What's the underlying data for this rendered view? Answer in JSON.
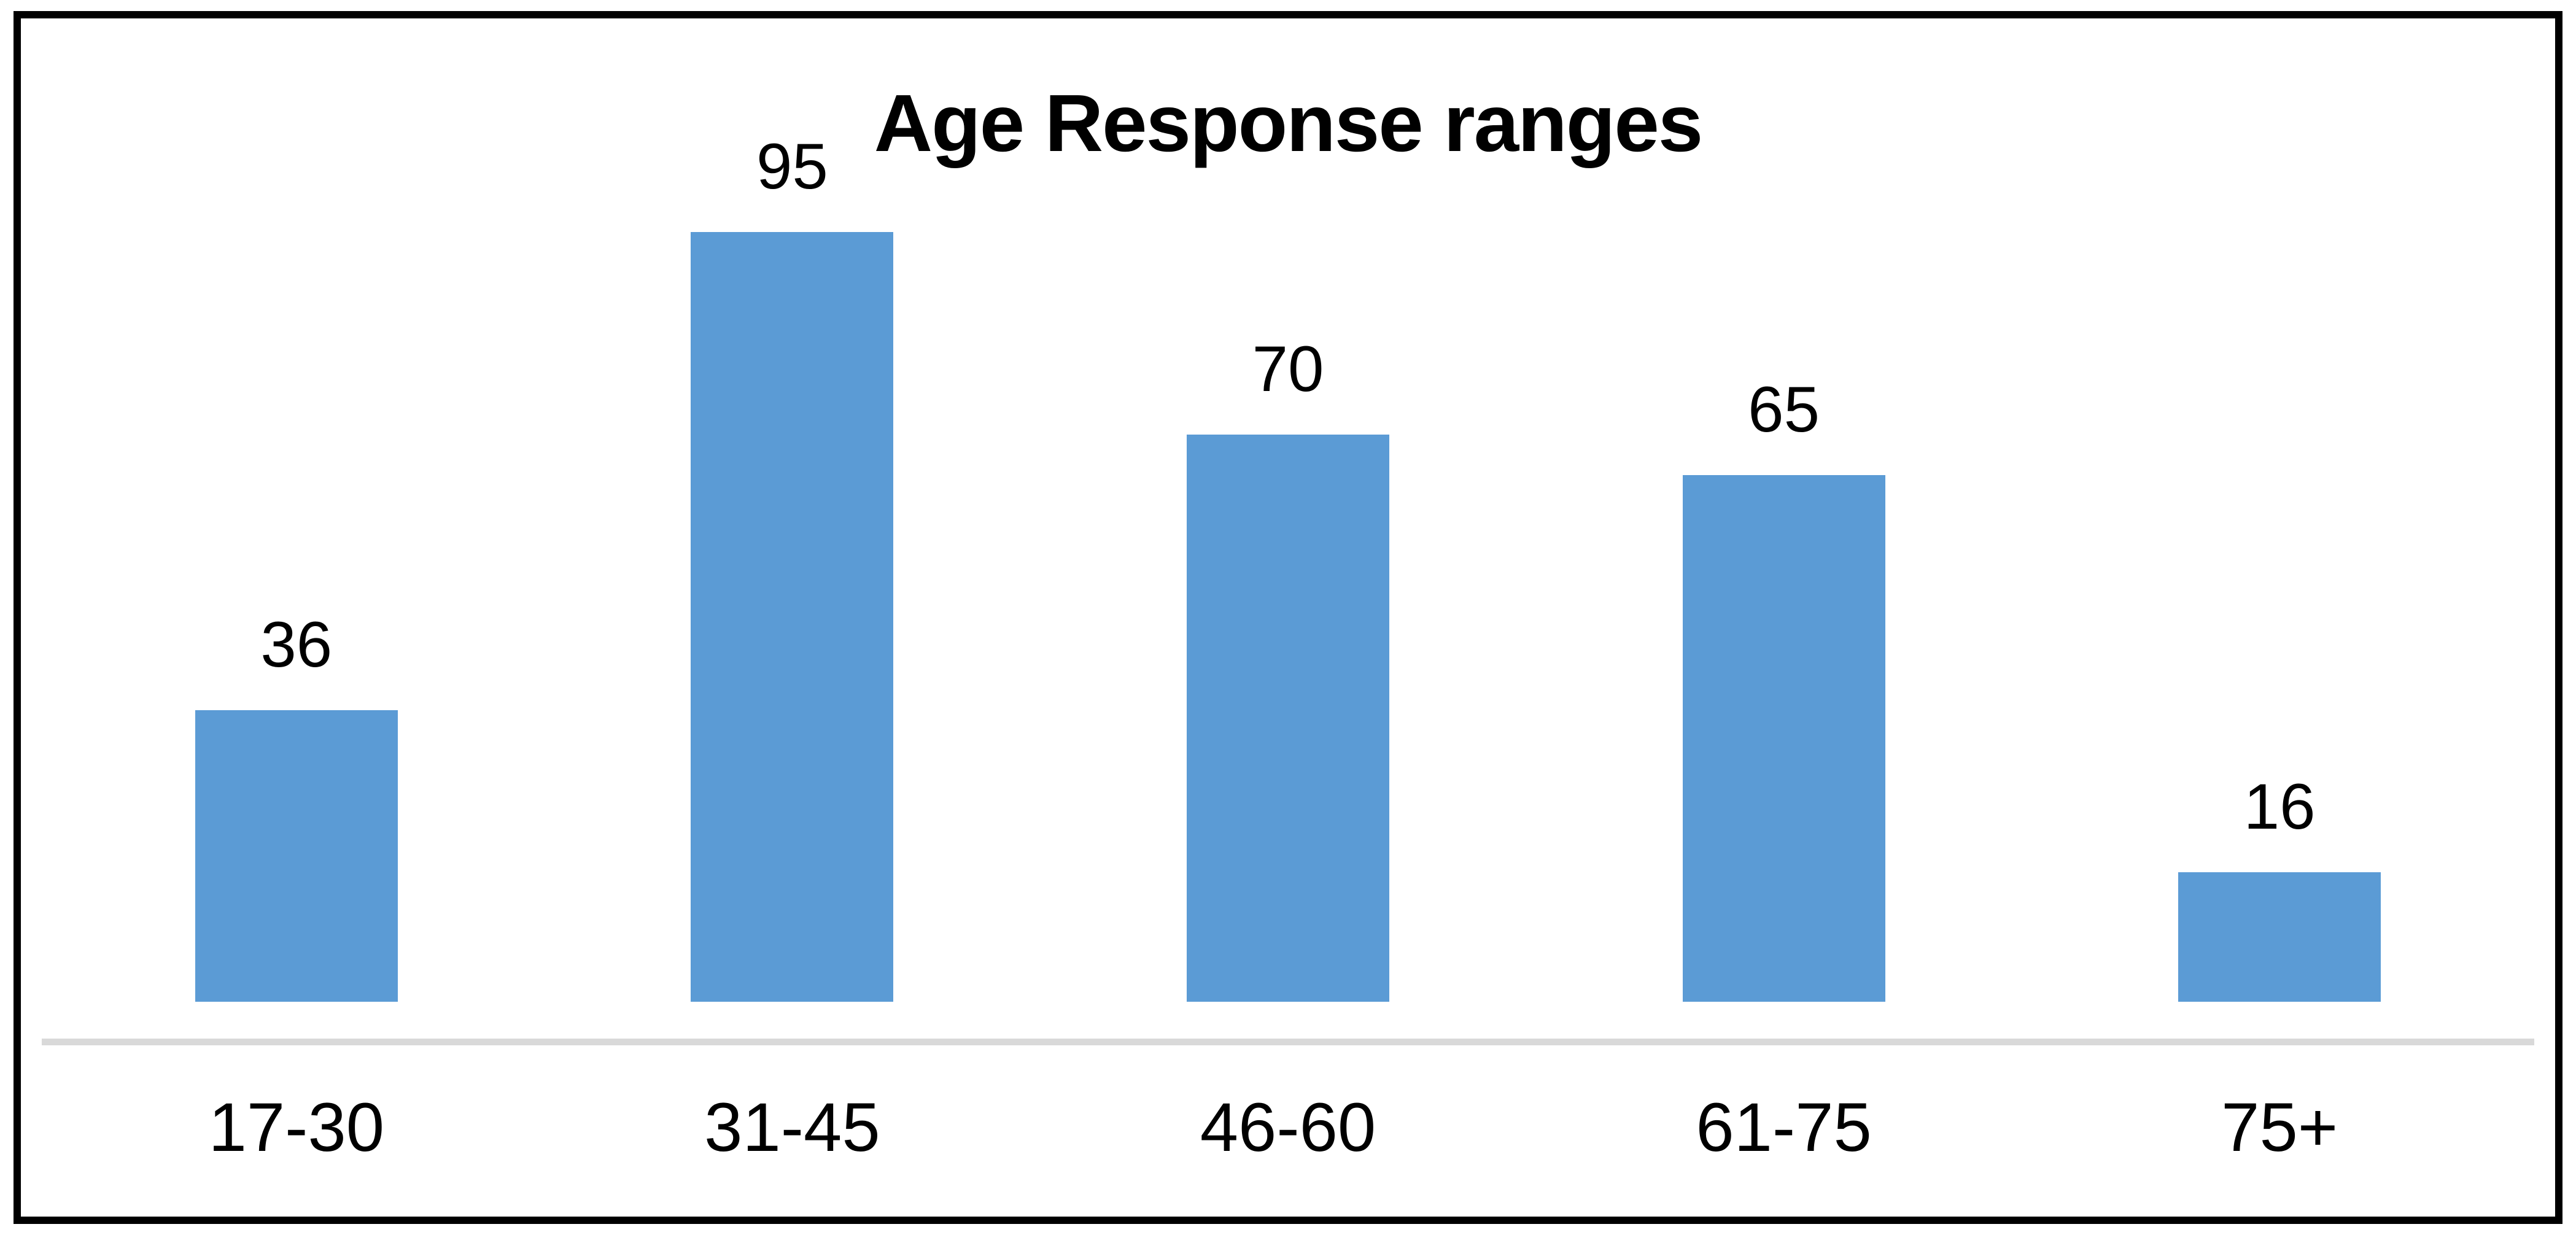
{
  "chart_data": {
    "type": "bar",
    "title": "Age Response ranges",
    "categories": [
      "17-30",
      "31-45",
      "46-60",
      "61-75",
      "75+"
    ],
    "values": [
      36,
      95,
      70,
      65,
      16
    ],
    "xlabel": "",
    "ylabel": "",
    "ylim": [
      0,
      100
    ],
    "grid": false,
    "legend_position": "none",
    "data_labels_shown": true,
    "bar_color": "#5B9BD5",
    "axis_line_color": "#D9D9D9",
    "title_color": "#000000",
    "label_color": "#000000"
  },
  "frame": {
    "border_color": "#000000",
    "background_color": "#FFFFFF"
  }
}
